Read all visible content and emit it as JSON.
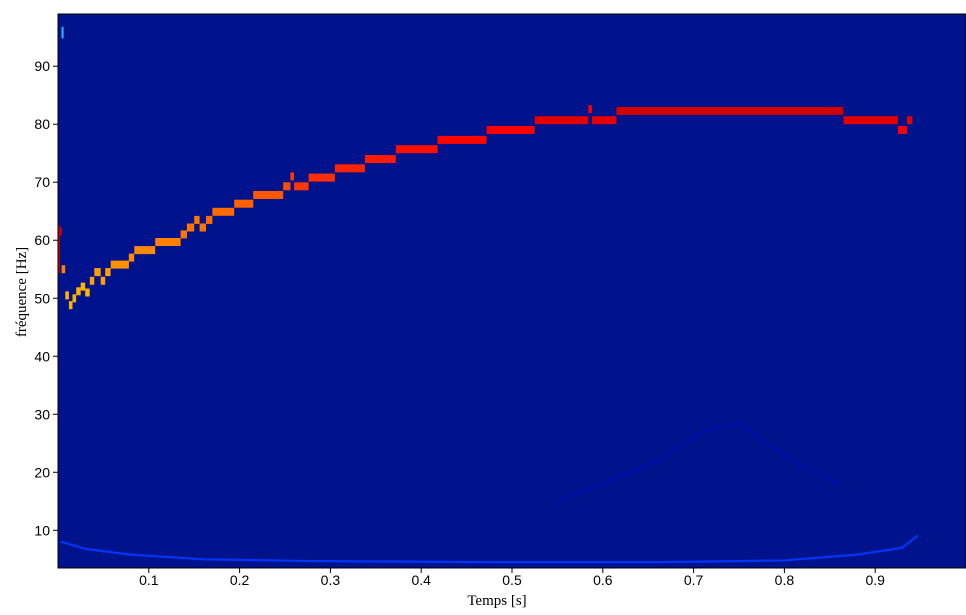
{
  "chart_data": {
    "type": "heatmap",
    "title": "",
    "xlabel": "Temps [s]",
    "ylabel": "fréquence [Hz]",
    "xlim": [
      0.0,
      1.0
    ],
    "ylim": [
      3.5,
      99.0
    ],
    "x_ticks": [
      0.1,
      0.2,
      0.3,
      0.4,
      0.5,
      0.6,
      0.7,
      0.8,
      0.9
    ],
    "x_tick_labels": [
      "0.1",
      "0.2",
      "0.3",
      "0.4",
      "0.5",
      "0.6",
      "0.7",
      "0.8",
      "0.9"
    ],
    "y_ticks": [
      10,
      20,
      30,
      40,
      50,
      60,
      70,
      80,
      90
    ],
    "y_tick_labels": [
      "10",
      "20",
      "30",
      "40",
      "50",
      "60",
      "70",
      "80",
      "90"
    ],
    "grid": false,
    "background_color": "#00138c",
    "colormap": "jet",
    "dominant_ridge": {
      "name": "",
      "points": [
        {
          "t_start": 0.0,
          "t_end": 0.004,
          "f": 61.5,
          "level": 0.9
        },
        {
          "t_start": 0.004,
          "t_end": 0.008,
          "f": 55.0,
          "level": 0.75
        },
        {
          "t_start": 0.008,
          "t_end": 0.012,
          "f": 50.5,
          "level": 0.7
        },
        {
          "t_start": 0.012,
          "t_end": 0.016,
          "f": 48.8,
          "level": 0.7
        },
        {
          "t_start": 0.016,
          "t_end": 0.02,
          "f": 50.0,
          "level": 0.7
        },
        {
          "t_start": 0.02,
          "t_end": 0.025,
          "f": 51.2,
          "level": 0.7
        },
        {
          "t_start": 0.025,
          "t_end": 0.03,
          "f": 52.0,
          "level": 0.7
        },
        {
          "t_start": 0.03,
          "t_end": 0.035,
          "f": 51.0,
          "level": 0.7
        },
        {
          "t_start": 0.035,
          "t_end": 0.04,
          "f": 53.0,
          "level": 0.72
        },
        {
          "t_start": 0.04,
          "t_end": 0.047,
          "f": 54.5,
          "level": 0.72
        },
        {
          "t_start": 0.047,
          "t_end": 0.052,
          "f": 53.0,
          "level": 0.72
        },
        {
          "t_start": 0.052,
          "t_end": 0.058,
          "f": 54.5,
          "level": 0.72
        },
        {
          "t_start": 0.058,
          "t_end": 0.078,
          "f": 55.8,
          "level": 0.73
        },
        {
          "t_start": 0.078,
          "t_end": 0.084,
          "f": 57.0,
          "level": 0.74
        },
        {
          "t_start": 0.084,
          "t_end": 0.107,
          "f": 58.3,
          "level": 0.74
        },
        {
          "t_start": 0.107,
          "t_end": 0.135,
          "f": 59.7,
          "level": 0.75
        },
        {
          "t_start": 0.135,
          "t_end": 0.142,
          "f": 61.0,
          "level": 0.76
        },
        {
          "t_start": 0.142,
          "t_end": 0.15,
          "f": 62.2,
          "level": 0.76
        },
        {
          "t_start": 0.15,
          "t_end": 0.156,
          "f": 63.5,
          "level": 0.76
        },
        {
          "t_start": 0.156,
          "t_end": 0.163,
          "f": 62.2,
          "level": 0.76
        },
        {
          "t_start": 0.163,
          "t_end": 0.17,
          "f": 63.5,
          "level": 0.77
        },
        {
          "t_start": 0.17,
          "t_end": 0.194,
          "f": 64.9,
          "level": 0.77
        },
        {
          "t_start": 0.194,
          "t_end": 0.215,
          "f": 66.3,
          "level": 0.78
        },
        {
          "t_start": 0.215,
          "t_end": 0.248,
          "f": 67.8,
          "level": 0.79
        },
        {
          "t_start": 0.248,
          "t_end": 0.256,
          "f": 69.3,
          "level": 0.8
        },
        {
          "t_start": 0.256,
          "t_end": 0.26,
          "f": 71.0,
          "level": 0.82
        },
        {
          "t_start": 0.26,
          "t_end": 0.276,
          "f": 69.3,
          "level": 0.82
        },
        {
          "t_start": 0.276,
          "t_end": 0.305,
          "f": 70.8,
          "level": 0.83
        },
        {
          "t_start": 0.305,
          "t_end": 0.338,
          "f": 72.4,
          "level": 0.84
        },
        {
          "t_start": 0.338,
          "t_end": 0.372,
          "f": 74.0,
          "level": 0.85
        },
        {
          "t_start": 0.372,
          "t_end": 0.418,
          "f": 75.7,
          "level": 0.86
        },
        {
          "t_start": 0.418,
          "t_end": 0.472,
          "f": 77.3,
          "level": 0.87
        },
        {
          "t_start": 0.472,
          "t_end": 0.525,
          "f": 79.0,
          "level": 0.88
        },
        {
          "t_start": 0.525,
          "t_end": 0.584,
          "f": 80.7,
          "level": 0.9
        },
        {
          "t_start": 0.584,
          "t_end": 0.588,
          "f": 82.6,
          "level": 0.88
        },
        {
          "t_start": 0.588,
          "t_end": 0.615,
          "f": 80.7,
          "level": 0.9
        },
        {
          "t_start": 0.615,
          "t_end": 0.865,
          "f": 82.3,
          "level": 0.92
        },
        {
          "t_start": 0.865,
          "t_end": 0.925,
          "f": 80.7,
          "level": 0.9
        },
        {
          "t_start": 0.925,
          "t_end": 0.935,
          "f": 79.0,
          "level": 0.88
        },
        {
          "t_start": 0.935,
          "t_end": 0.941,
          "f": 80.7,
          "level": 0.9
        }
      ]
    },
    "faint_components": [
      {
        "name": "",
        "level": 0.18,
        "points": [
          [
            0.004,
            8.0
          ],
          [
            0.03,
            6.8
          ],
          [
            0.08,
            5.8
          ],
          [
            0.16,
            5.0
          ],
          [
            0.28,
            4.7
          ],
          [
            0.48,
            4.5
          ],
          [
            0.66,
            4.5
          ],
          [
            0.8,
            4.8
          ],
          [
            0.88,
            5.8
          ],
          [
            0.93,
            7.0
          ],
          [
            0.946,
            9.0
          ]
        ]
      },
      {
        "name": "",
        "level": 0.1,
        "points": [
          [
            0.55,
            15.0
          ],
          [
            0.6,
            18.0
          ],
          [
            0.66,
            22.0
          ],
          [
            0.71,
            27.0
          ],
          [
            0.75,
            28.5
          ],
          [
            0.78,
            25.0
          ],
          [
            0.82,
            21.0
          ],
          [
            0.86,
            18.0
          ]
        ]
      }
    ]
  }
}
